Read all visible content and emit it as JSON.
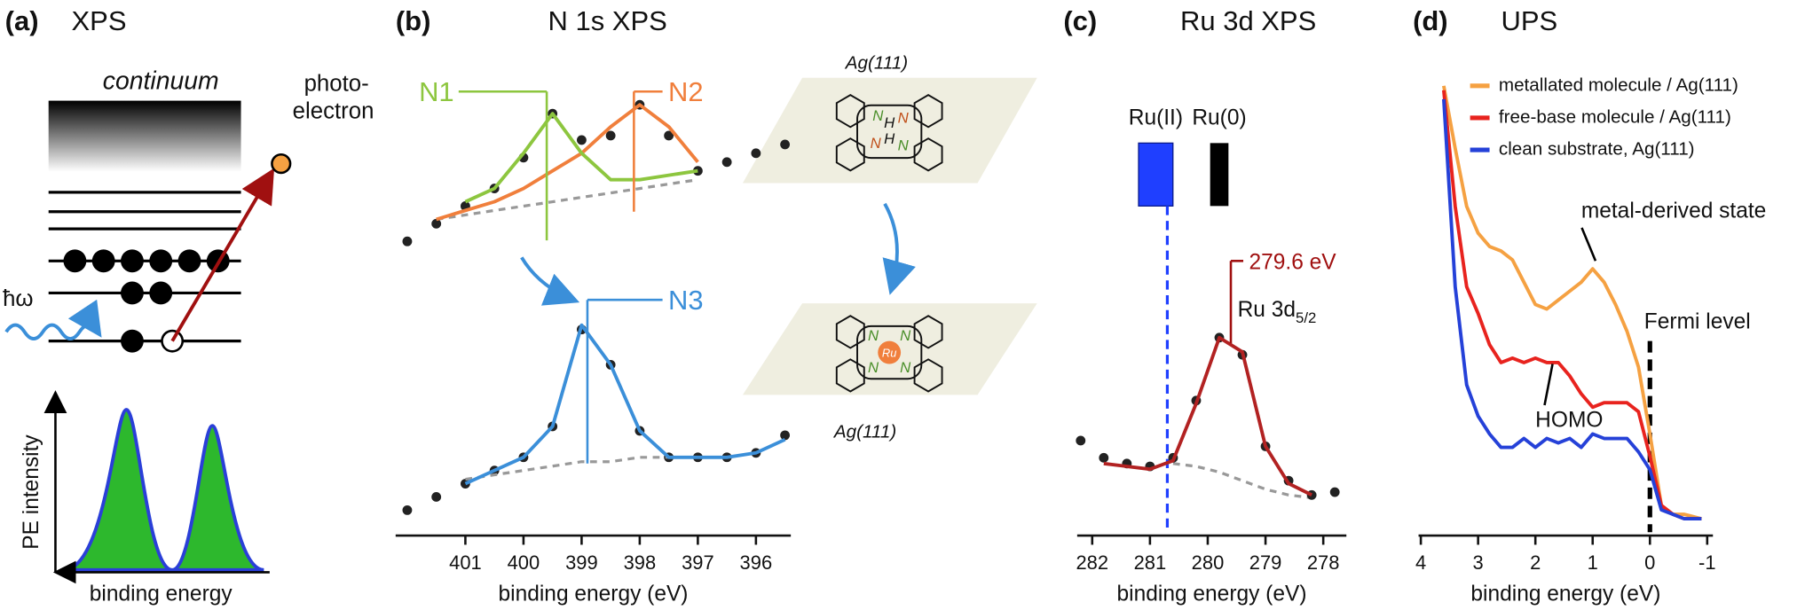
{
  "figure": {
    "panel_a": {
      "tag": "(a)",
      "title": "XPS",
      "continuum": "continuum",
      "photoelectron": [
        "photo-",
        "electron"
      ],
      "photon": "ħω",
      "ylabel": "PE intensity",
      "xlabel": "binding energy"
    }
  },
  "chart_data": [
    {
      "type": "line",
      "tag": "(b)",
      "title": "N 1s XPS",
      "xlabel": "binding energy (eV)",
      "x": [
        402,
        401.5,
        401,
        400.5,
        400,
        399.5,
        399,
        398.5,
        398,
        397.5,
        397,
        396.5,
        396,
        395.5
      ],
      "xlim": [
        402.2,
        395.4
      ],
      "xticks": [
        401,
        400,
        399,
        398,
        397,
        396
      ],
      "ylim": [
        0,
        100
      ],
      "series": [
        {
          "color": "#222222",
          "style": "dots",
          "values": [
            66,
            70,
            74,
            78,
            85,
            95,
            89,
            90,
            97,
            90,
            82,
            84,
            86,
            88
          ]
        },
        {
          "color": "#999999",
          "style": "dashed",
          "values": [
            null,
            71,
            72,
            73,
            74,
            75,
            76,
            77,
            78,
            79,
            80,
            null,
            null,
            null
          ]
        },
        {
          "color": "#f07f3c",
          "style": "solid",
          "values": [
            null,
            71,
            73,
            75,
            78,
            82,
            86,
            92,
            97,
            92,
            84,
            null,
            null,
            null
          ]
        },
        {
          "color": "#8dc63f",
          "style": "solid",
          "values": [
            null,
            null,
            75,
            78,
            86,
            95,
            86,
            80,
            80,
            81,
            82,
            null,
            null,
            null
          ]
        },
        {
          "color": "#222222",
          "style": "dots",
          "values": [
            5,
            8,
            11,
            14,
            17,
            24,
            46,
            38,
            23,
            17,
            17,
            17,
            18,
            22
          ]
        },
        {
          "color": "#999999",
          "style": "dashed",
          "values": [
            null,
            null,
            12,
            13,
            14,
            15,
            16,
            16,
            17,
            17,
            17,
            null,
            null,
            null
          ]
        },
        {
          "color": "#3b8fd9",
          "style": "solid",
          "values": [
            null,
            null,
            11,
            14,
            17,
            24,
            47,
            38,
            23,
            17,
            17,
            17,
            18,
            21
          ]
        }
      ],
      "annotations": [
        {
          "text": "N1",
          "x": 399.6,
          "color": "#8dc63f"
        },
        {
          "text": "N2",
          "x": 398.1,
          "color": "#f07f3c"
        },
        {
          "text": "N3",
          "x": 398.9,
          "color": "#3b8fd9"
        }
      ],
      "substrate_labels": [
        "Ag(111)",
        "Ag(111)"
      ],
      "atoms_top": [
        "N",
        "N",
        "N",
        "N",
        "H",
        "H"
      ],
      "atoms_bottom": [
        "N",
        "N",
        "N",
        "N",
        "Ru"
      ]
    },
    {
      "type": "line",
      "tag": "(c)",
      "title": "Ru 3d XPS",
      "xlabel": "binding energy  (eV)",
      "x": [
        282.2,
        281.8,
        281.4,
        281.0,
        280.6,
        280.2,
        279.8,
        279.4,
        279.0,
        278.6,
        278.2,
        277.8
      ],
      "xlim": [
        282.26,
        277.6
      ],
      "xticks": [
        282,
        281,
        280,
        279,
        278
      ],
      "ylim": [
        0,
        100
      ],
      "series": [
        {
          "color": "#999999",
          "style": "dashed",
          "values": [
            null,
            null,
            null,
            null,
            24,
            23,
            21,
            18,
            15,
            13,
            12,
            null
          ]
        },
        {
          "color": "#222222",
          "style": "dots",
          "values": [
            32,
            26,
            24,
            23,
            26,
            46,
            68,
            62,
            30,
            18,
            13,
            14
          ]
        },
        {
          "color": "#b22222",
          "style": "solid",
          "values": [
            null,
            24,
            23,
            22,
            25,
            45,
            68,
            63,
            30,
            17,
            13,
            null
          ]
        }
      ],
      "markers": [
        {
          "label": "Ru(II)",
          "x": 280.9,
          "color": "#1f3fff"
        },
        {
          "label": "Ru(0)",
          "x": 279.8,
          "color": "#000000"
        }
      ],
      "reference_line": {
        "x": 280.7,
        "color": "#1f3fff"
      },
      "annotations": [
        {
          "text": "279.6 eV",
          "x": 279.6,
          "color": "#a01010"
        }
      ],
      "peak_label": {
        "text": "Ru 3d",
        "sub": "5/2"
      }
    },
    {
      "type": "line",
      "tag": "(d)",
      "title": "UPS",
      "xlabel": "binding energy  (eV)",
      "x": [
        3.6,
        3.4,
        3.2,
        3.0,
        2.8,
        2.6,
        2.4,
        2.2,
        2.0,
        1.8,
        1.6,
        1.4,
        1.2,
        1.0,
        0.8,
        0.6,
        0.4,
        0.2,
        0.0,
        -0.2,
        -0.4,
        -0.6,
        -0.9
      ],
      "xlim": [
        4.04,
        -1.1
      ],
      "xticks": [
        4,
        3,
        2,
        1,
        0,
        -1
      ],
      "ylim": [
        0,
        100
      ],
      "legend": "upper left",
      "series": [
        {
          "name": "metallated molecule / Ag(111)",
          "color": "#f5a142",
          "style": "solid",
          "values": [
            100,
            86,
            73,
            67,
            64,
            63,
            61,
            56,
            51,
            50,
            52,
            54,
            56,
            59,
            56,
            51,
            45,
            37,
            22,
            6,
            4,
            4,
            3
          ]
        },
        {
          "name": "free-base molecule / Ag(111)",
          "color": "#e8231e",
          "style": "solid",
          "values": [
            99,
            73,
            55,
            49,
            42,
            38,
            39,
            38,
            39,
            38,
            38,
            35,
            31,
            28,
            29,
            29,
            29,
            27,
            17,
            6,
            4,
            3,
            3
          ]
        },
        {
          "name": "clean substrate, Ag(111)",
          "color": "#2541d8",
          "style": "solid",
          "values": [
            97,
            55,
            33,
            26,
            22,
            19,
            19,
            21,
            19,
            21,
            20,
            21,
            19,
            22,
            21,
            21,
            21,
            18,
            14,
            5,
            4,
            3,
            3
          ]
        }
      ],
      "fermi_line": {
        "x": 0,
        "label": "Fermi level"
      },
      "annotations": [
        {
          "text": "metal-derived state",
          "x": 0.95
        },
        {
          "text": "HOMO",
          "x": 1.7
        }
      ]
    }
  ]
}
